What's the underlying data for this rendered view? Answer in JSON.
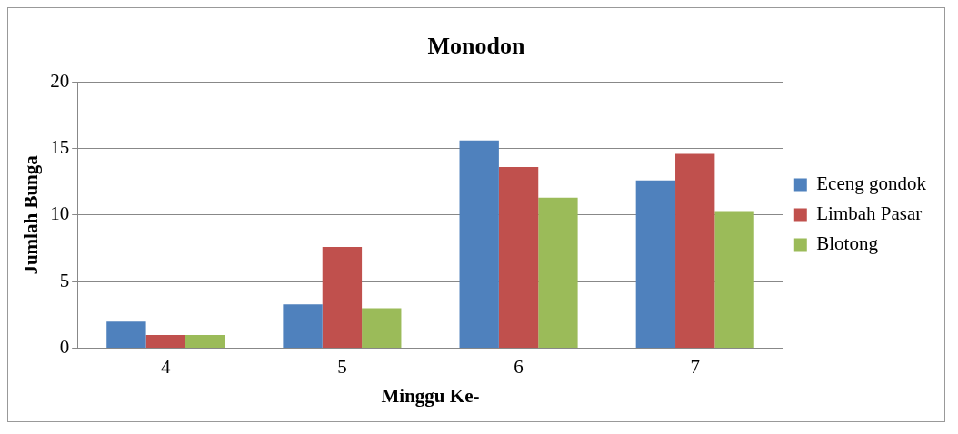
{
  "chart_data": {
    "type": "bar",
    "title": "Monodon",
    "xlabel": "Minggu Ke-",
    "ylabel": "Jumlah Bunga",
    "categories": [
      "4",
      "5",
      "6",
      "7"
    ],
    "series": [
      {
        "name": "Eceng gondok",
        "color": "#4f81bd",
        "values": [
          2,
          3.3,
          15.6,
          12.6
        ]
      },
      {
        "name": "Limbah Pasar",
        "color": "#c0504d",
        "values": [
          1,
          7.6,
          13.6,
          14.6
        ]
      },
      {
        "name": "Blotong",
        "color": "#9bbb59",
        "values": [
          1,
          3,
          11.3,
          10.3
        ]
      }
    ],
    "ylim": [
      0,
      20
    ],
    "yticks": [
      0,
      5,
      10,
      15,
      20
    ],
    "grid": "y",
    "legend": "right"
  }
}
